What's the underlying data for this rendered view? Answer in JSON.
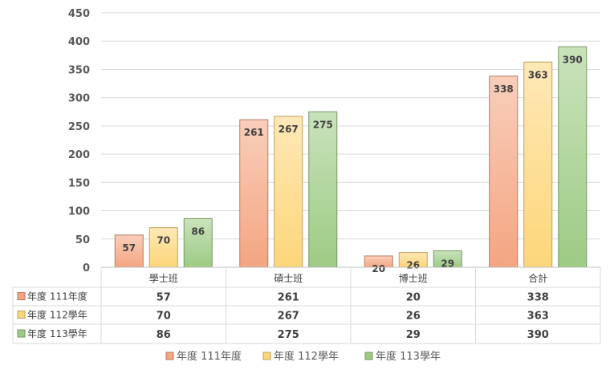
{
  "chart_data": {
    "type": "bar",
    "categories": [
      "學士班",
      "碩士班",
      "博士班",
      "合計"
    ],
    "series": [
      {
        "name": "年度 111年度",
        "table_label": "年度 111年度",
        "values": [
          57,
          261,
          20,
          338
        ],
        "color": "#f4a582"
      },
      {
        "name": "年度 112學年",
        "table_label": "年度  112學年",
        "values": [
          70,
          267,
          26,
          363
        ],
        "color": "#fdd67a"
      },
      {
        "name": "年度 113學年",
        "table_label": "年度 113學年",
        "values": [
          86,
          275,
          29,
          390
        ],
        "color": "#9dcb84"
      }
    ],
    "yticks": [
      "0",
      "50",
      "100",
      "150",
      "200",
      "250",
      "300",
      "350",
      "400",
      "450"
    ],
    "ylim": [
      0,
      450
    ],
    "grid": true,
    "legend_position": "bottom",
    "data_table": true
  }
}
